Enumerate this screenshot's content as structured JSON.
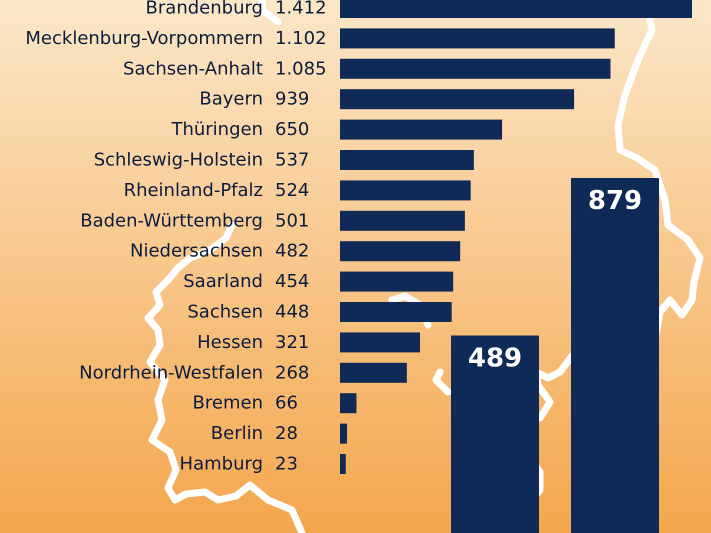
{
  "colors": {
    "bar": "#0f2a56",
    "background_top": "#fbe7c8",
    "background_bottom": "#f4a64c",
    "outline": "#ffffff",
    "text": "#0b1b3d",
    "bar_label": "#ffffff"
  },
  "chart_data": [
    {
      "type": "bar",
      "orientation": "horizontal",
      "categories": [
        "Brandenburg",
        "Mecklenburg-Vorpommern",
        "Sachsen-Anhalt",
        "Bayern",
        "Thüringen",
        "Schleswig-Holstein",
        "Rheinland-Pfalz",
        "Baden-Württemberg",
        "Niedersachsen",
        "Saarland",
        "Sachsen",
        "Hessen",
        "Nordrhein-Westfalen",
        "Bremen",
        "Berlin",
        "Hamburg"
      ],
      "values": [
        1412,
        1102,
        1085,
        939,
        650,
        537,
        524,
        501,
        482,
        454,
        448,
        321,
        268,
        66,
        28,
        23
      ],
      "value_labels": [
        "1.412",
        "1.102",
        "1.085",
        "939",
        "650",
        "537",
        "524",
        "501",
        "482",
        "454",
        "448",
        "321",
        "268",
        "66",
        "28",
        "23"
      ],
      "xlim": [
        0,
        1412
      ]
    },
    {
      "type": "bar",
      "orientation": "vertical",
      "values": [
        489,
        879
      ],
      "value_labels": [
        "489",
        "879"
      ]
    }
  ]
}
